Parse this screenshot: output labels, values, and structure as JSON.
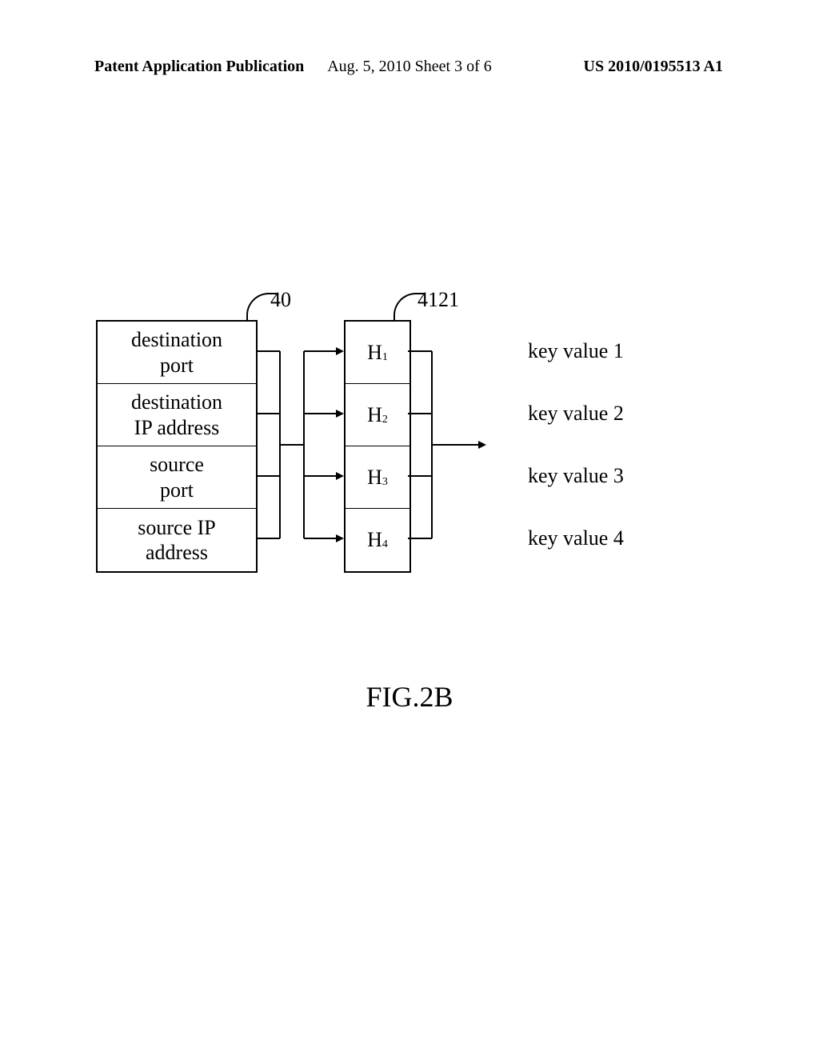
{
  "header": {
    "left": "Patent Application Publication",
    "center": "Aug. 5, 2010  Sheet 3 of 6",
    "right": "US 2010/0195513 A1"
  },
  "inputs": [
    "destination\nport",
    "destination\nIP address",
    "source\nport",
    "source IP\naddress"
  ],
  "hashes": [
    {
      "label": "H",
      "sub": "1"
    },
    {
      "label": "H",
      "sub": "2"
    },
    {
      "label": "H",
      "sub": "3"
    },
    {
      "label": "H",
      "sub": "4"
    }
  ],
  "keyValues": [
    "key value 1",
    "key value 2",
    "key value 3",
    "key value 4"
  ],
  "labels": {
    "ref40": "40",
    "ref4121": "4121"
  },
  "figure": "FIG.2B",
  "styling": {
    "font_family": "Times New Roman",
    "header_fontsize": 20,
    "body_fontsize": 26,
    "figure_fontsize": 36,
    "border_color": "#000000",
    "background_color": "#ffffff",
    "input_box_width": 198,
    "input_box_height": 78,
    "hash_box_width": 80,
    "hash_box_height": 78,
    "border_width": 2
  }
}
